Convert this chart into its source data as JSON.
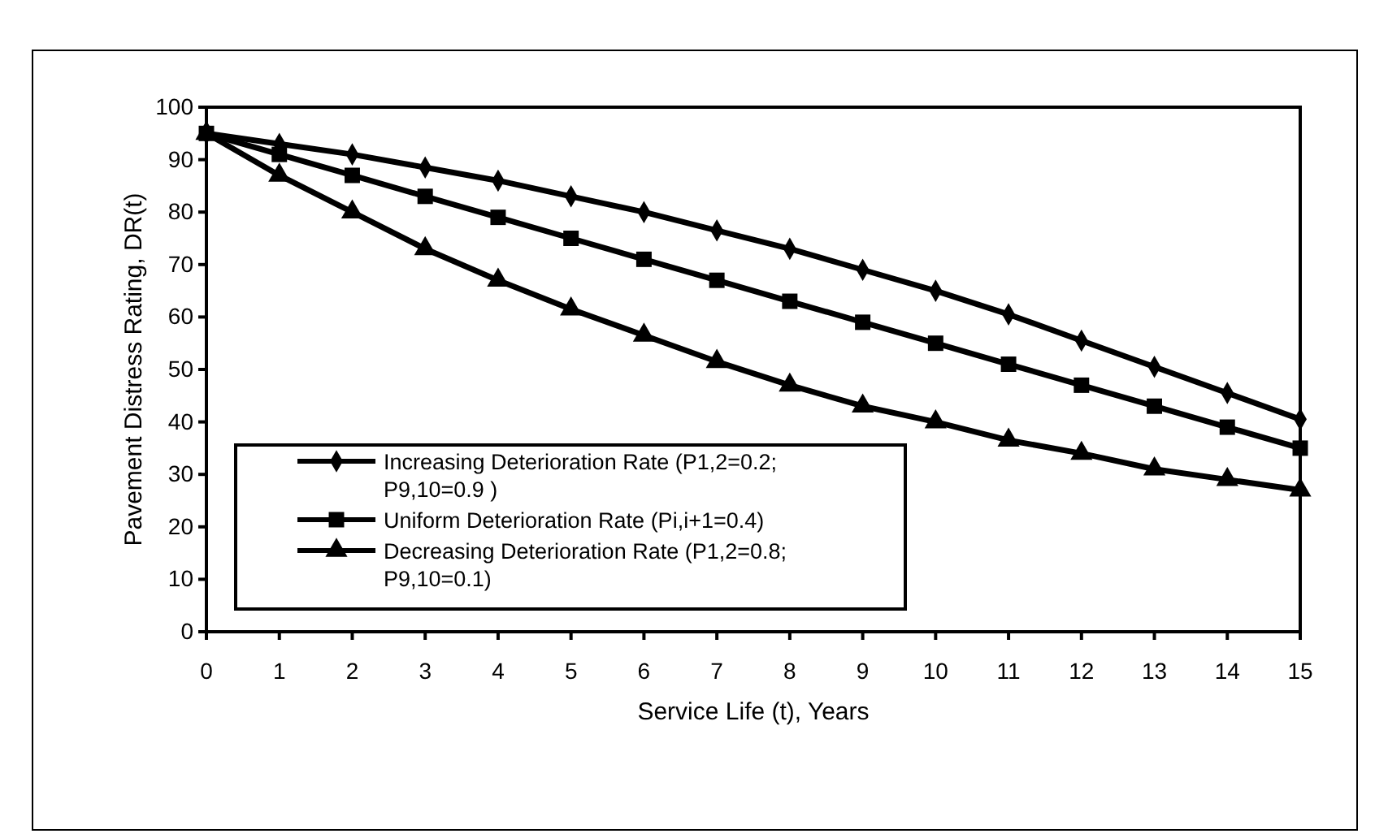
{
  "chart_data": {
    "type": "line",
    "xlabel": "Service Life (t), Years",
    "ylabel": "Pavement Distress Rating, DR(t)",
    "x": [
      0,
      1,
      2,
      3,
      4,
      5,
      6,
      7,
      8,
      9,
      10,
      11,
      12,
      13,
      14,
      15
    ],
    "xlim": [
      0,
      15
    ],
    "xticks": [
      0,
      1,
      2,
      3,
      4,
      5,
      6,
      7,
      8,
      9,
      10,
      11,
      12,
      13,
      14,
      15
    ],
    "ylim": [
      0,
      100
    ],
    "yticks": [
      0,
      10,
      20,
      30,
      40,
      50,
      60,
      70,
      80,
      90,
      100
    ],
    "grid": false,
    "legend": "bottom left",
    "line_style": "solid",
    "series": [
      {
        "name": "Increasing Deterioration Rate (P1,2=0.2; P9,10=0.9 )",
        "color": "#000000",
        "marker": "diamond",
        "values": [
          95,
          93,
          91,
          88.5,
          86,
          83,
          80,
          76.5,
          73,
          69,
          65,
          60.5,
          55.5,
          50.5,
          45.5,
          40.5
        ]
      },
      {
        "name": "Uniform Deterioration Rate (Pi,i+1=0.4)",
        "color": "#000000",
        "marker": "square",
        "values": [
          95,
          91,
          87,
          83,
          79,
          75,
          71,
          67,
          63,
          59,
          55,
          51,
          47,
          43,
          39,
          35
        ]
      },
      {
        "name": "Decreasing Deterioration Rate (P1,2=0.8; P9,10=0.1)",
        "color": "#000000",
        "marker": "triangle",
        "values": [
          95,
          87,
          80,
          73,
          67,
          61.5,
          56.5,
          51.5,
          47,
          43,
          40,
          36.5,
          34,
          31,
          29,
          27
        ]
      }
    ]
  }
}
